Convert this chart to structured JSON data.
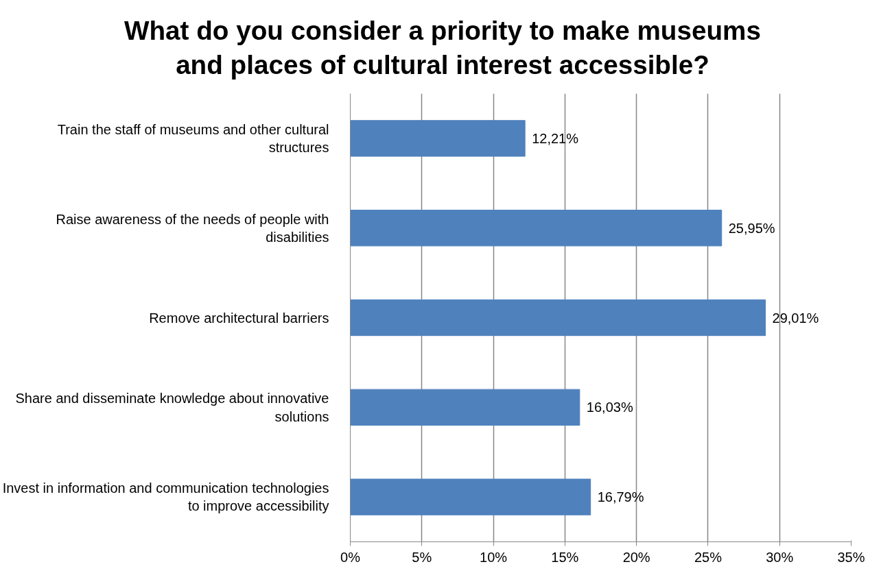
{
  "chart_data": {
    "type": "bar",
    "orientation": "horizontal",
    "title": "What do you consider a priority to make museums and places of cultural interest accessible?",
    "categories": [
      "Train the staff of museums and other cultural structures",
      "Raise awareness of the needs of people with disabilities",
      "Remove architectural barriers",
      "Share and disseminate knowledge about innovative solutions",
      "Invest in information and communication technologies to improve accessibility"
    ],
    "values": [
      12.21,
      25.95,
      29.01,
      16.03,
      16.79
    ],
    "value_labels": [
      "12,21%",
      "25,95%",
      "29,01%",
      "16,03%",
      "16,79%"
    ],
    "color": "#4f81bd",
    "xlim": [
      0,
      35
    ],
    "xticks": [
      {
        "value": 0,
        "label": "0%"
      },
      {
        "value": 5,
        "label": "5%"
      },
      {
        "value": 10,
        "label": "10%"
      },
      {
        "value": 15,
        "label": "15%"
      },
      {
        "value": 20,
        "label": "20%"
      },
      {
        "value": 25,
        "label": "25%"
      },
      {
        "value": 30,
        "label": "30%"
      },
      {
        "value": 35,
        "label": "35%"
      }
    ],
    "grid": "x"
  }
}
